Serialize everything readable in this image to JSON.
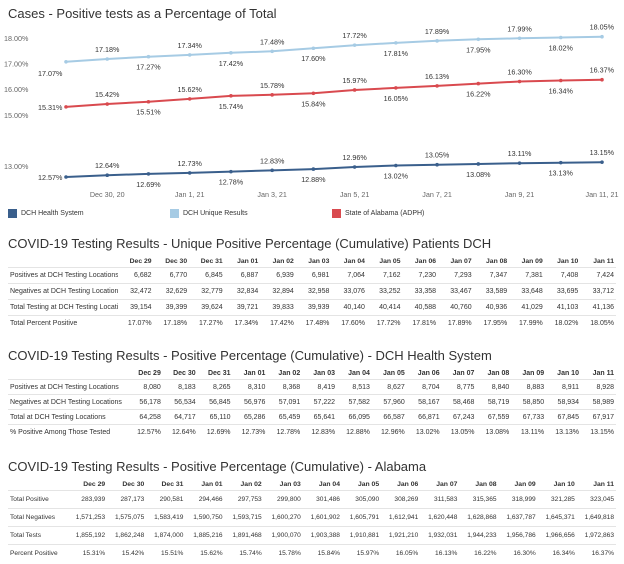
{
  "chart_title": "Cases - Positive tests as a Percentage of Total",
  "chart_data": {
    "type": "line",
    "x": [
      "Dec 29",
      "Dec 30",
      "Dec 31",
      "Jan 01",
      "Jan 02",
      "Jan 03",
      "Jan 04",
      "Jan 05",
      "Jan 06",
      "Jan 07",
      "Jan 08",
      "Jan 09",
      "Jan 10",
      "Jan 11"
    ],
    "x_tick_labels": [
      "Dec 30, 20",
      "Jan 1, 21",
      "Jan 3, 21",
      "Jan 5, 21",
      "Jan 7, 21",
      "Jan 9, 21",
      "Jan 11, 21"
    ],
    "y_tick_labels": [
      "18.00%",
      "17.00%",
      "16.00%",
      "15.00%",
      "13.00%"
    ],
    "legend_position": "bottom",
    "grid": false,
    "series": [
      {
        "name": "DCH Unique Results",
        "color": "#a6cbe4",
        "values": [
          17.07,
          17.18,
          17.27,
          17.34,
          17.42,
          17.48,
          17.6,
          17.72,
          17.81,
          17.89,
          17.95,
          17.99,
          18.02,
          18.05
        ],
        "labels": [
          "17.07%",
          "17.18%",
          "17.27%",
          "17.34%",
          "17.42%",
          "17.48%",
          "17.60%",
          "17.72%",
          "17.81%",
          "17.89%",
          "17.95%",
          "17.99%",
          "18.02%",
          "18.05%"
        ]
      },
      {
        "name": "State of Alabama (ADPH)",
        "color": "#d94a4f",
        "values": [
          15.31,
          15.42,
          15.51,
          15.62,
          15.74,
          15.78,
          15.84,
          15.97,
          16.05,
          16.13,
          16.22,
          16.3,
          16.34,
          16.37
        ],
        "labels": [
          "15.31%",
          "15.42%",
          "15.51%",
          "15.62%",
          "15.74%",
          "15.78%",
          "15.84%",
          "15.97%",
          "16.05%",
          "16.13%",
          "16.22%",
          "16.30%",
          "16.34%",
          "16.37%"
        ]
      },
      {
        "name": "DCH Health System",
        "color": "#3a5f8c",
        "values": [
          12.57,
          12.64,
          12.69,
          12.73,
          12.78,
          12.83,
          12.88,
          12.96,
          13.02,
          13.05,
          13.08,
          13.11,
          13.13,
          13.15
        ],
        "labels": [
          "12.57%",
          "12.64%",
          "12.69%",
          "12.73%",
          "12.78%",
          "12.83%",
          "12.88%",
          "12.96%",
          "13.02%",
          "13.05%",
          "13.08%",
          "13.11%",
          "13.13%",
          "13.15%"
        ]
      }
    ]
  },
  "legend": [
    {
      "label": "DCH Health System",
      "color": "#3a5f8c"
    },
    {
      "label": "DCH Unique Results",
      "color": "#a6cbe4"
    },
    {
      "label": "State of Alabama (ADPH)",
      "color": "#d94a4f"
    }
  ],
  "tables": [
    {
      "title": "COVID-19 Testing Results - Unique Positive Percentage (Cumulative) Patients DCH",
      "columns": [
        "Dec 29",
        "Dec 30",
        "Dec 31",
        "Jan 01",
        "Jan 02",
        "Jan 03",
        "Jan 04",
        "Jan 05",
        "Jan 06",
        "Jan 07",
        "Jan 08",
        "Jan 09",
        "Jan 10",
        "Jan 11"
      ],
      "rows": [
        {
          "label": "Positives at DCH Testing Locations",
          "values": [
            "6,682",
            "6,770",
            "6,845",
            "6,887",
            "6,939",
            "6,981",
            "7,064",
            "7,162",
            "7,230",
            "7,293",
            "7,347",
            "7,381",
            "7,408",
            "7,424"
          ]
        },
        {
          "label": "Negatives at DCH Testing Locations",
          "values": [
            "32,472",
            "32,629",
            "32,779",
            "32,834",
            "32,894",
            "32,958",
            "33,076",
            "33,252",
            "33,358",
            "33,467",
            "33,589",
            "33,648",
            "33,695",
            "33,712"
          ]
        },
        {
          "label": "Total Testing at DCH Testing Locations",
          "values": [
            "39,154",
            "39,399",
            "39,624",
            "39,721",
            "39,833",
            "39,939",
            "40,140",
            "40,414",
            "40,588",
            "40,760",
            "40,936",
            "41,029",
            "41,103",
            "41,136"
          ]
        },
        {
          "label": "Total Percent Positive",
          "values": [
            "17.07%",
            "17.18%",
            "17.27%",
            "17.34%",
            "17.42%",
            "17.48%",
            "17.60%",
            "17.72%",
            "17.81%",
            "17.89%",
            "17.95%",
            "17.99%",
            "18.02%",
            "18.05%"
          ]
        }
      ]
    },
    {
      "title": "COVID-19 Testing Results - Positive Percentage (Cumulative) - DCH Health System",
      "columns": [
        "Dec 29",
        "Dec 30",
        "Dec 31",
        "Jan 01",
        "Jan 02",
        "Jan 03",
        "Jan 04",
        "Jan 05",
        "Jan 06",
        "Jan 07",
        "Jan 08",
        "Jan 09",
        "Jan 10",
        "Jan 11"
      ],
      "rows": [
        {
          "label": "Positives at DCH Testing Locations",
          "values": [
            "8,080",
            "8,183",
            "8,265",
            "8,310",
            "8,368",
            "8,419",
            "8,513",
            "8,627",
            "8,704",
            "8,775",
            "8,840",
            "8,883",
            "8,911",
            "8,928"
          ]
        },
        {
          "label": "Negatives at DCH Testing Locations",
          "values": [
            "56,178",
            "56,534",
            "56,845",
            "56,976",
            "57,091",
            "57,222",
            "57,582",
            "57,960",
            "58,167",
            "58,468",
            "58,719",
            "58,850",
            "58,934",
            "58,989"
          ]
        },
        {
          "label": "Total at DCH Testing Locations",
          "values": [
            "64,258",
            "64,717",
            "65,110",
            "65,286",
            "65,459",
            "65,641",
            "66,095",
            "66,587",
            "66,871",
            "67,243",
            "67,559",
            "67,733",
            "67,845",
            "67,917"
          ]
        },
        {
          "label": "% Positive Among Those Tested",
          "values": [
            "12.57%",
            "12.64%",
            "12.69%",
            "12.73%",
            "12.78%",
            "12.83%",
            "12.88%",
            "12.96%",
            "13.02%",
            "13.05%",
            "13.08%",
            "13.11%",
            "13.13%",
            "13.15%"
          ]
        }
      ]
    },
    {
      "title": "COVID-19 Testing Results - Positive Percentage (Cumulative) - Alabama",
      "columns": [
        "Dec 29",
        "Dec 30",
        "Dec 31",
        "Jan 01",
        "Jan 02",
        "Jan 03",
        "Jan 04",
        "Jan 05",
        "Jan 06",
        "Jan 07",
        "Jan 08",
        "Jan 09",
        "Jan 10",
        "Jan 11"
      ],
      "rows": [
        {
          "label": "Total Positive",
          "values": [
            "283,939",
            "287,173",
            "290,581",
            "294,466",
            "297,753",
            "299,800",
            "301,486",
            "305,090",
            "308,269",
            "311,583",
            "315,365",
            "318,999",
            "321,285",
            "323,045"
          ]
        },
        {
          "label": "Total Negatives",
          "values": [
            "1,571,253",
            "1,575,075",
            "1,583,419",
            "1,590,750",
            "1,593,715",
            "1,600,270",
            "1,601,902",
            "1,605,791",
            "1,612,941",
            "1,620,448",
            "1,628,868",
            "1,637,787",
            "1,645,371",
            "1,649,818"
          ]
        },
        {
          "label": "Total Tests",
          "values": [
            "1,855,192",
            "1,862,248",
            "1,874,000",
            "1,885,216",
            "1,891,468",
            "1,900,070",
            "1,903,388",
            "1,910,881",
            "1,921,210",
            "1,932,031",
            "1,944,233",
            "1,956,786",
            "1,966,656",
            "1,972,863"
          ]
        },
        {
          "label": "Percent Positive",
          "values": [
            "15.31%",
            "15.42%",
            "15.51%",
            "15.62%",
            "15.74%",
            "15.78%",
            "15.84%",
            "15.97%",
            "16.05%",
            "16.13%",
            "16.22%",
            "16.30%",
            "16.34%",
            "16.37%"
          ]
        }
      ]
    }
  ]
}
